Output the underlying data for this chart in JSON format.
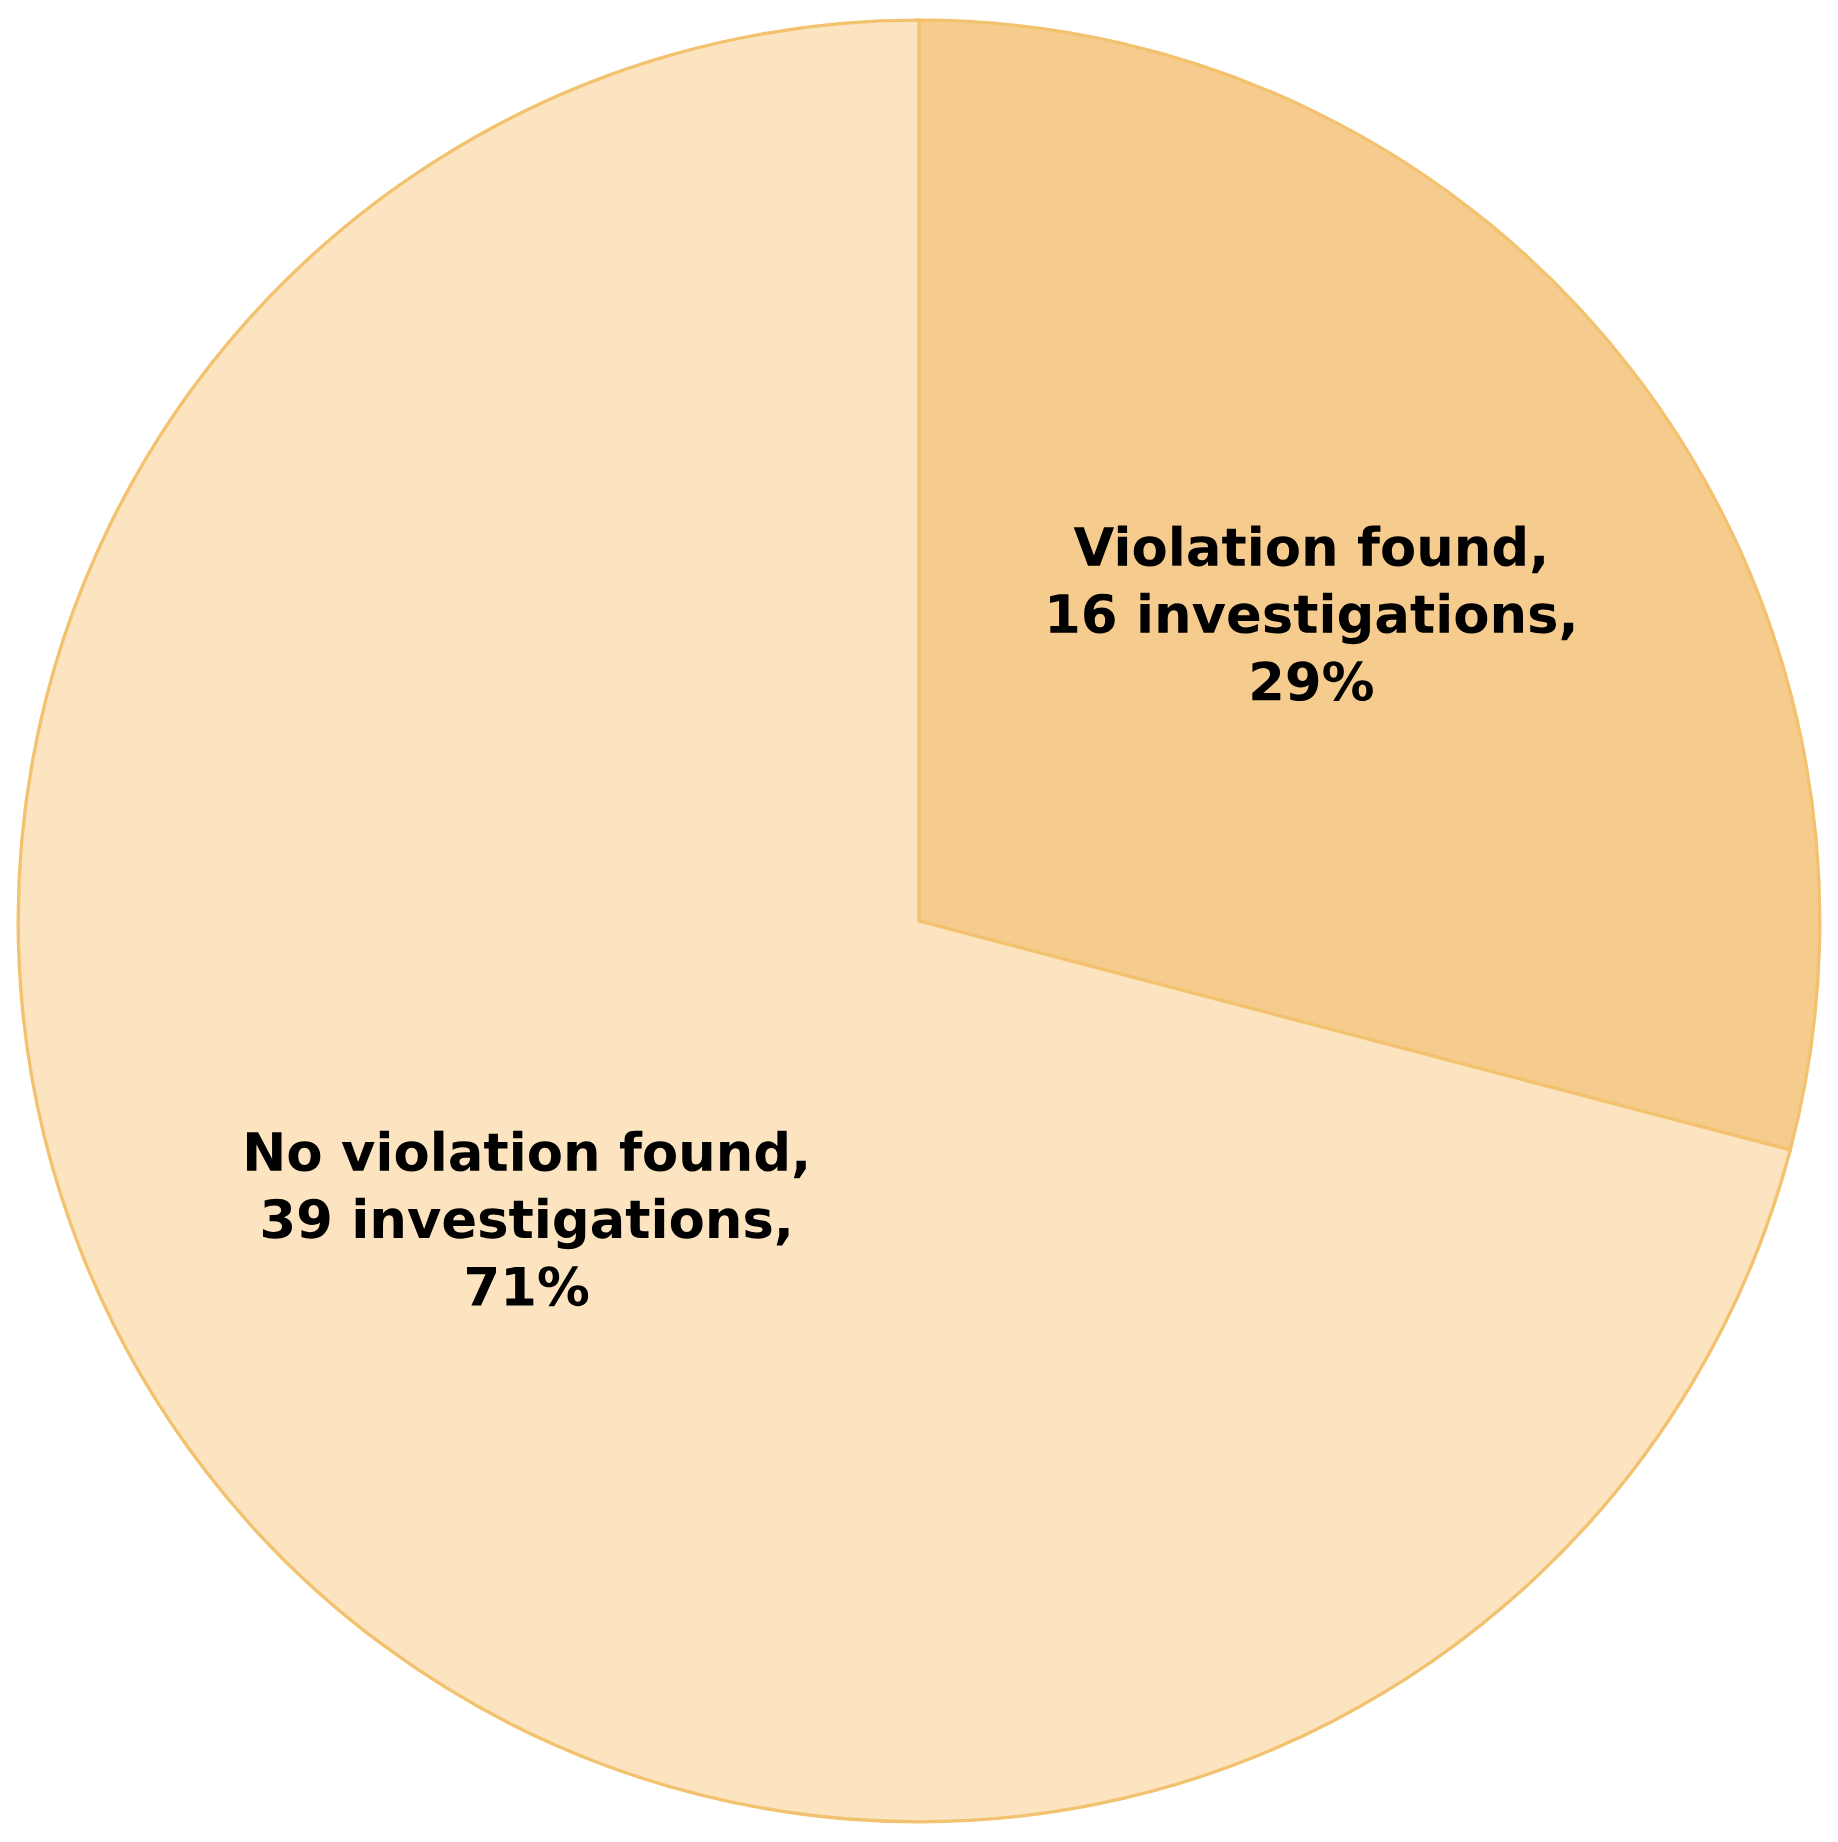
{
  "chart_data": {
    "type": "pie",
    "categories": [
      null,
      null
    ],
    "values": [
      16,
      39
    ],
    "value_labels": [
      "Violation found,\n16 investigations,\n29%",
      "No violation found,\n39 investigations,\n71%"
    ],
    "colors": [
      "#f6cc8e",
      "#fde4c0"
    ]
  }
}
